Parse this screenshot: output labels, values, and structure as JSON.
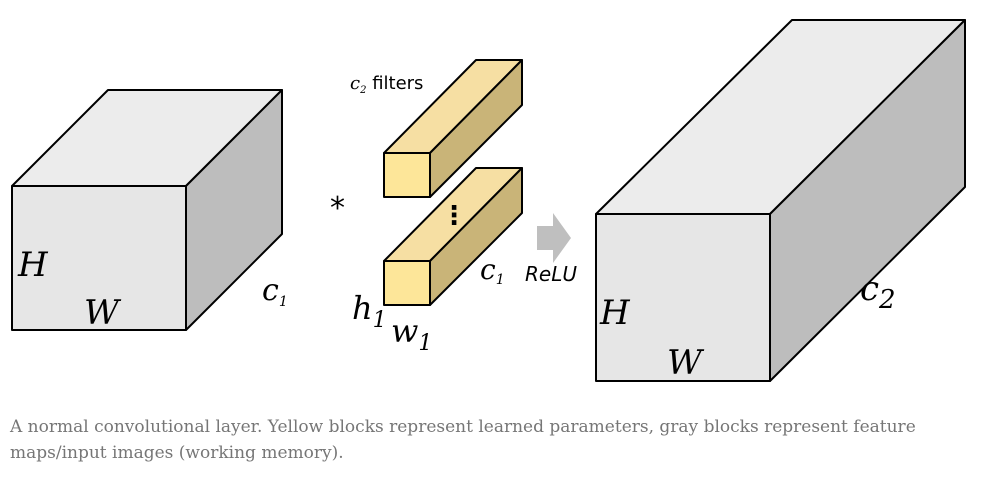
{
  "diagram": {
    "input_block": {
      "height_label": "H",
      "width_label": "W",
      "depth_label": "c",
      "depth_sub": "1"
    },
    "operator": "*",
    "filters": {
      "count_label_main": "c",
      "count_label_sub": "2",
      "count_label_rest": " filters",
      "ellipsis": "⋮",
      "depth_label": "c",
      "depth_sub": "1",
      "height_label": "h",
      "height_sub": "1",
      "width_label": "w",
      "width_sub": "1"
    },
    "activation": {
      "label": "ReLU"
    },
    "output_block": {
      "height_label": "H",
      "width_label": "W",
      "depth_label": "c",
      "depth_sub": "2"
    },
    "colors": {
      "gray_front": "#e6e6e6",
      "gray_top": "#ececec",
      "gray_side": "#bdbdbd",
      "yellow_front": "#fde699",
      "yellow_top": "#f6dfa3",
      "yellow_side": "#c9b478",
      "arrow": "#bfbfbf"
    }
  },
  "caption": "A normal convolutional layer. Yellow blocks represent learned parameters, gray blocks represent feature maps/input images (working memory)."
}
